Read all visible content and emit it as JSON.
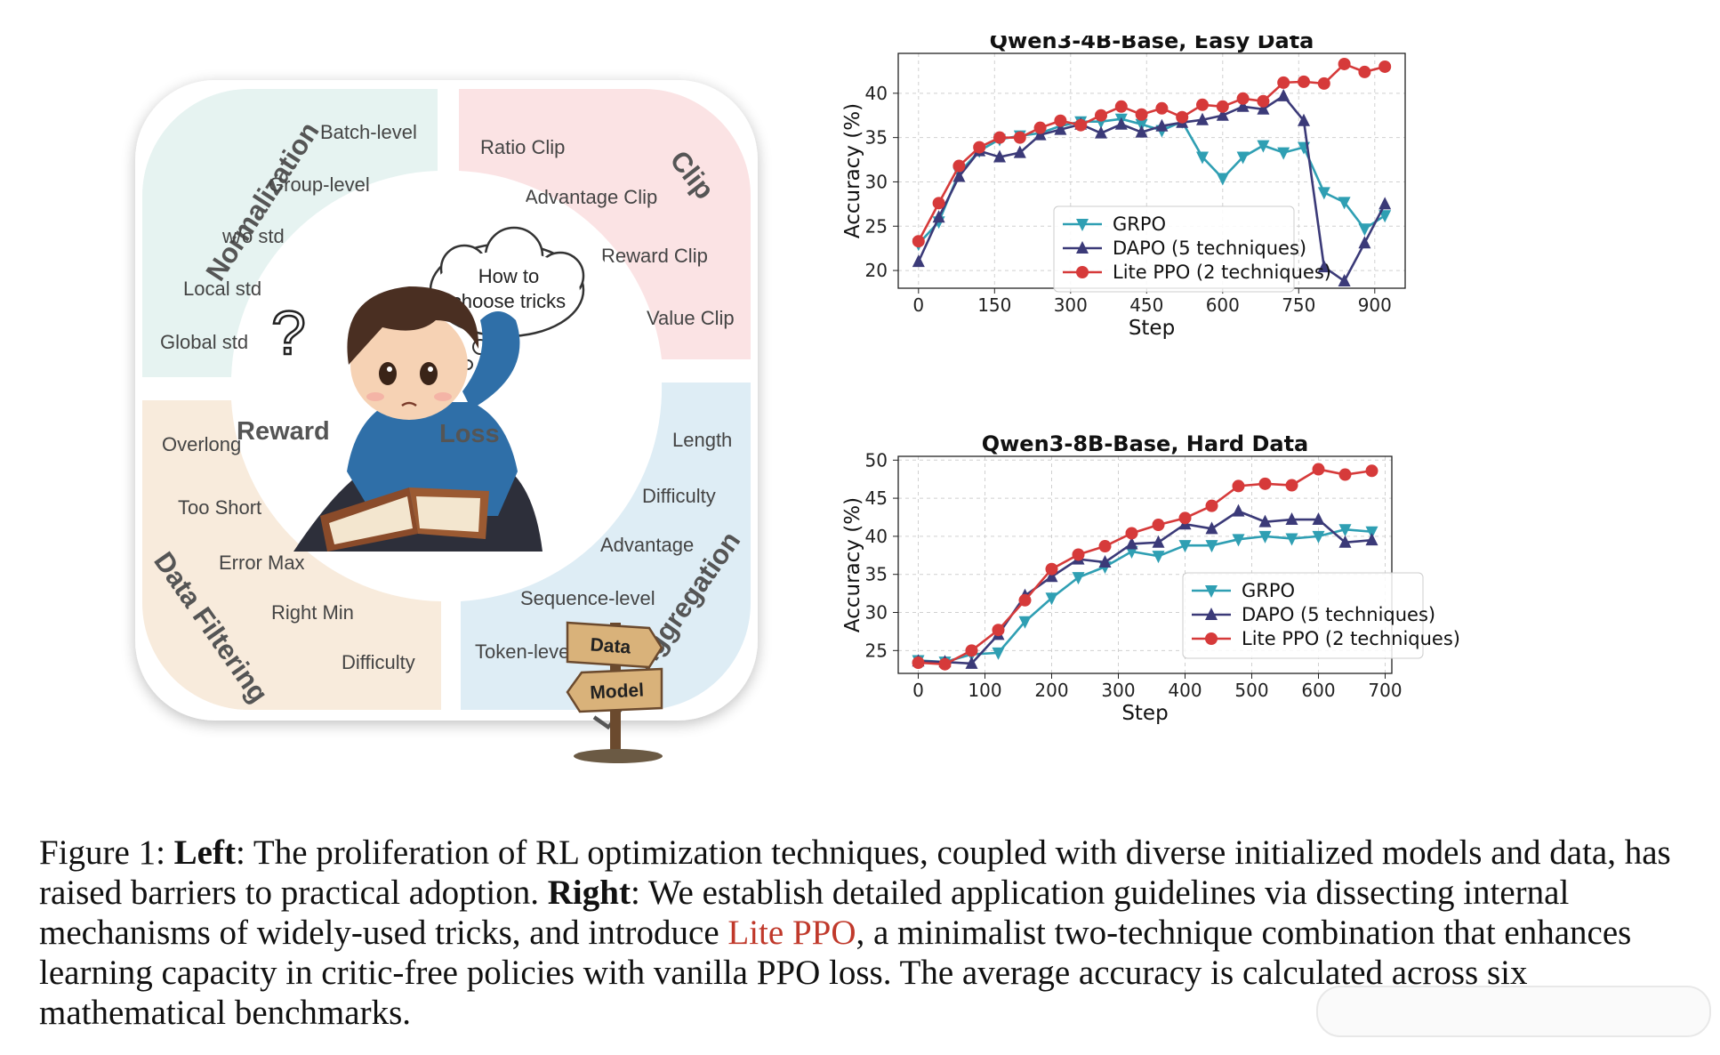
{
  "diagram": {
    "quadrants": {
      "normalization": {
        "title": "Normalization",
        "items": [
          "Batch-level",
          "Group-level",
          "w/o std",
          "Local std",
          "Global std"
        ]
      },
      "clip": {
        "title": "Clip",
        "items": [
          "Ratio Clip",
          "Advantage Clip",
          "Reward Clip",
          "Value Clip"
        ]
      },
      "data_filtering": {
        "title": "Data Filtering",
        "items": [
          "Overlong",
          "Too Short",
          "Error Max",
          "Right Min",
          "Difficulty"
        ]
      },
      "loss_aggregation": {
        "title": "Loss Aggregation",
        "items": [
          "Length",
          "Difficulty",
          "Advantage",
          "Sequence-level",
          "Token-level"
        ]
      }
    },
    "center": {
      "reward_label": "Reward",
      "loss_label": "Loss",
      "thought_line1": "How to",
      "thought_line2": "choose tricks",
      "question_mark": "?"
    },
    "signpost": {
      "top": "Data",
      "bottom": "Model"
    },
    "colors": {
      "normalization_bg": "#e6f3f1",
      "clip_bg": "#fbe3e4",
      "data_filtering_bg": "#f8ebdc",
      "loss_aggregation_bg": "#deedf5"
    }
  },
  "chart_data": [
    {
      "type": "line",
      "title": "Qwen3-4B-Base, Easy Data",
      "xlabel": "Step",
      "ylabel": "Accuracy (%)",
      "xlim": [
        -40,
        960
      ],
      "ylim": [
        18,
        44.5
      ],
      "xticks": [
        0,
        150,
        300,
        450,
        600,
        750,
        900
      ],
      "yticks": [
        20,
        25,
        30,
        35,
        40
      ],
      "grid": true,
      "legend_position": "lower-center",
      "series": [
        {
          "name": "GRPO",
          "color": "#2f9fb3",
          "marker": "triangle-down",
          "x": [
            0,
            40,
            80,
            120,
            160,
            200,
            240,
            280,
            320,
            360,
            400,
            440,
            480,
            520,
            560,
            600,
            640,
            680,
            720,
            760,
            800,
            840,
            880,
            920
          ],
          "y": [
            23.0,
            25.5,
            31.0,
            33.5,
            34.8,
            35.2,
            35.5,
            36.3,
            36.8,
            36.8,
            37.1,
            36.5,
            35.8,
            36.8,
            32.8,
            30.4,
            32.8,
            34.1,
            33.3,
            33.9,
            28.8,
            27.7,
            24.7,
            26.2
          ]
        },
        {
          "name": "DAPO (5 techniques)",
          "color": "#3b3a78",
          "marker": "triangle-up",
          "x": [
            0,
            40,
            80,
            120,
            160,
            200,
            240,
            280,
            320,
            360,
            400,
            440,
            480,
            520,
            560,
            600,
            640,
            680,
            720,
            760,
            800,
            840,
            880,
            920
          ],
          "y": [
            21.0,
            26.0,
            30.6,
            33.5,
            32.8,
            33.3,
            35.3,
            35.9,
            36.5,
            35.5,
            36.5,
            35.6,
            36.3,
            36.7,
            37.0,
            37.5,
            38.5,
            38.2,
            39.7,
            36.9,
            20.4,
            18.8,
            23.1,
            27.5
          ]
        },
        {
          "name": "Lite PPO (2 techniques)",
          "color": "#d63a3a",
          "marker": "circle",
          "x": [
            0,
            40,
            80,
            120,
            160,
            200,
            240,
            280,
            320,
            360,
            400,
            440,
            480,
            520,
            560,
            600,
            640,
            680,
            720,
            760,
            800,
            840,
            880,
            920
          ],
          "y": [
            23.3,
            27.6,
            31.8,
            33.9,
            35.0,
            35.0,
            36.1,
            36.9,
            36.4,
            37.5,
            38.5,
            37.6,
            38.3,
            37.3,
            38.7,
            38.5,
            39.4,
            39.1,
            41.2,
            41.3,
            41.1,
            43.3,
            42.4,
            43.0
          ]
        }
      ]
    },
    {
      "type": "line",
      "title": "Qwen3-8B-Base, Hard Data",
      "xlabel": "Step",
      "ylabel": "Accuracy (%)",
      "xlim": [
        -30,
        710
      ],
      "ylim": [
        22,
        50.5
      ],
      "xticks": [
        0,
        100,
        200,
        300,
        400,
        500,
        600,
        700
      ],
      "yticks": [
        25,
        30,
        35,
        40,
        45,
        50
      ],
      "grid": true,
      "legend_position": "lower-right",
      "series": [
        {
          "name": "GRPO",
          "color": "#2f9fb3",
          "marker": "triangle-down",
          "x": [
            0,
            40,
            80,
            120,
            160,
            200,
            240,
            280,
            320,
            360,
            400,
            440,
            480,
            520,
            560,
            600,
            640,
            680
          ],
          "y": [
            23.7,
            23.5,
            24.5,
            24.7,
            28.8,
            31.9,
            34.6,
            36.0,
            38.0,
            37.4,
            38.8,
            38.8,
            39.6,
            40.0,
            39.7,
            40.0,
            40.9,
            40.6
          ]
        },
        {
          "name": "DAPO (5 techniques)",
          "color": "#3b3a78",
          "marker": "triangle-up",
          "x": [
            0,
            40,
            80,
            120,
            160,
            200,
            240,
            280,
            320,
            360,
            400,
            440,
            480,
            520,
            560,
            600,
            640,
            680
          ],
          "y": [
            23.6,
            23.5,
            23.3,
            27.1,
            32.2,
            34.7,
            37.0,
            36.6,
            39.0,
            39.2,
            41.6,
            41.0,
            43.3,
            41.9,
            42.2,
            42.2,
            39.2,
            39.5
          ]
        },
        {
          "name": "Lite PPO (2 techniques)",
          "color": "#d63a3a",
          "marker": "circle",
          "x": [
            0,
            40,
            80,
            120,
            160,
            200,
            240,
            280,
            320,
            360,
            400,
            440,
            480,
            520,
            560,
            600,
            640,
            680
          ],
          "y": [
            23.4,
            23.2,
            25.0,
            27.7,
            31.6,
            35.7,
            37.6,
            38.7,
            40.4,
            41.5,
            42.4,
            44.0,
            46.6,
            46.9,
            46.7,
            48.8,
            48.1,
            48.6
          ]
        }
      ]
    }
  ],
  "caption": {
    "figure_label": "Figure 1: ",
    "left_label": "Left",
    "left_text": ": The proliferation of RL optimization techniques, coupled with diverse initialized models and data, has raised barriers to practical adoption. ",
    "right_label": "Right",
    "right_text_a": ": We establish detailed application guidelines via dissecting internal mechanisms of widely-used tricks, and introduce ",
    "highlight": "Lite PPO",
    "right_text_b": ", a minimalist two-technique combination that enhances learning capacity in critic-free policies with vanilla PPO loss. ",
    "sentence_last": "The average accuracy is calculated across six mathematical benchmarks."
  }
}
